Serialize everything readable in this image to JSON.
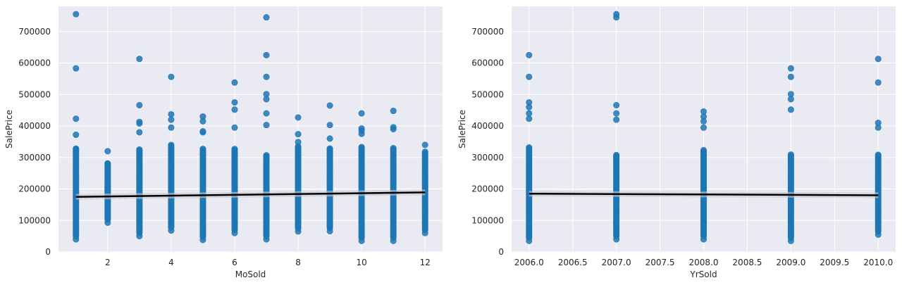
{
  "chart_data": [
    {
      "type": "scatter",
      "xlabel": "MoSold",
      "ylabel": "SalePrice",
      "xlim": [
        0.45,
        12.55
      ],
      "ylim": [
        0,
        780000
      ],
      "x_ticks": [
        2,
        4,
        6,
        8,
        10,
        12
      ],
      "y_ticks": [
        0,
        100000,
        200000,
        300000,
        400000,
        500000,
        600000,
        700000
      ],
      "grid": true,
      "point_color": "#1f77b4",
      "regression": {
        "x": [
          1,
          12
        ],
        "y": [
          175000,
          189000
        ],
        "color": "#000000"
      },
      "groups": [
        {
          "x": 1,
          "min": 40000,
          "max": 755000,
          "outliers": [
            583000,
            423000,
            372000,
            328000
          ]
        },
        {
          "x": 2,
          "min": 93000,
          "max": 320000,
          "outliers": [
            281000
          ]
        },
        {
          "x": 3,
          "min": 50000,
          "max": 613000,
          "outliers": [
            466000,
            413000,
            408000,
            380000
          ]
        },
        {
          "x": 4,
          "min": 68000,
          "max": 556000,
          "outliers": [
            437000,
            420000,
            395000
          ]
        },
        {
          "x": 5,
          "min": 38000,
          "max": 430000,
          "outliers": [
            415000,
            383000,
            380000
          ]
        },
        {
          "x": 6,
          "min": 60000,
          "max": 538000,
          "outliers": [
            475000,
            452000,
            395000
          ]
        },
        {
          "x": 7,
          "min": 40000,
          "max": 745000,
          "outliers": [
            625000,
            556000,
            501000,
            485000,
            440000,
            403000
          ]
        },
        {
          "x": 8,
          "min": 65000,
          "max": 427000,
          "outliers": [
            374000,
            349000
          ]
        },
        {
          "x": 9,
          "min": 66000,
          "max": 465000,
          "outliers": [
            403000,
            360000
          ]
        },
        {
          "x": 10,
          "min": 35000,
          "max": 440000,
          "outliers": [
            392000,
            385000,
            375000
          ]
        },
        {
          "x": 11,
          "min": 35000,
          "max": 448000,
          "outliers": [
            396000,
            390000
          ]
        },
        {
          "x": 12,
          "min": 60000,
          "max": 340000,
          "outliers": [
            318000
          ]
        }
      ]
    },
    {
      "type": "scatter",
      "xlabel": "YrSold",
      "ylabel": "SalePrice",
      "xlim": [
        2005.8,
        2010.2
      ],
      "ylim": [
        0,
        780000
      ],
      "x_ticks": [
        2006.0,
        2006.5,
        2007.0,
        2007.5,
        2008.0,
        2008.5,
        2009.0,
        2009.5,
        2010.0
      ],
      "y_ticks": [
        0,
        100000,
        200000,
        300000,
        400000,
        500000,
        600000,
        700000
      ],
      "grid": true,
      "point_color": "#1f77b4",
      "regression": {
        "x": [
          2006,
          2010
        ],
        "y": [
          185000,
          180000
        ],
        "color": "#000000"
      },
      "groups": [
        {
          "x": 2006,
          "min": 35000,
          "max": 625000,
          "outliers": [
            556000,
            475000,
            460000,
            440000,
            423000
          ]
        },
        {
          "x": 2007,
          "min": 40000,
          "max": 755000,
          "outliers": [
            745000,
            466000,
            440000,
            420000
          ]
        },
        {
          "x": 2008,
          "min": 40000,
          "max": 446000,
          "outliers": [
            430000,
            415000,
            395000
          ]
        },
        {
          "x": 2009,
          "min": 35000,
          "max": 583000,
          "outliers": [
            556000,
            501000,
            485000,
            452000
          ]
        },
        {
          "x": 2010,
          "min": 55000,
          "max": 613000,
          "outliers": [
            538000,
            410000,
            395000
          ]
        }
      ]
    }
  ]
}
